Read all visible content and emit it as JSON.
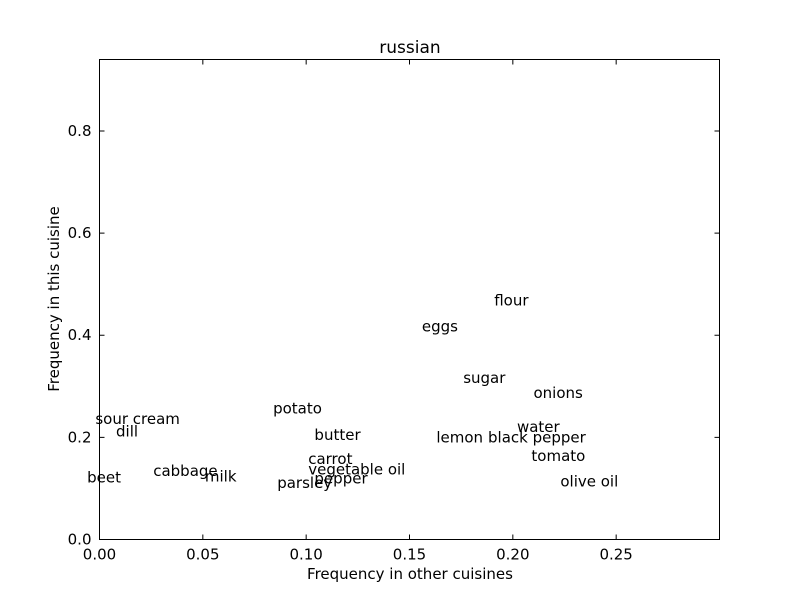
{
  "chart_data": {
    "type": "scatter",
    "title": "russian",
    "xlabel": "Frequency in other cuisines",
    "ylabel": "Frequency in this cuisine",
    "xlim": [
      0.0,
      0.3
    ],
    "ylim": [
      0.0,
      0.94
    ],
    "xticks": [
      0.0,
      0.05,
      0.1,
      0.15,
      0.2,
      0.25
    ],
    "xtick_labels": [
      "0.00",
      "0.05",
      "0.10",
      "0.15",
      "0.20",
      "0.25"
    ],
    "yticks": [
      0.0,
      0.2,
      0.4,
      0.6,
      0.8
    ],
    "ytick_labels": [
      "0.0",
      "0.2",
      "0.4",
      "0.6",
      "0.8"
    ],
    "grid": false,
    "points": [
      {
        "label": "flour",
        "x": 0.191,
        "y": 0.458
      },
      {
        "label": "eggs",
        "x": 0.156,
        "y": 0.407
      },
      {
        "label": "sugar",
        "x": 0.176,
        "y": 0.306
      },
      {
        "label": "onions",
        "x": 0.21,
        "y": 0.277
      },
      {
        "label": "potato",
        "x": 0.084,
        "y": 0.247
      },
      {
        "label": "sour cream",
        "x": -0.002,
        "y": 0.226
      },
      {
        "label": "dill",
        "x": 0.008,
        "y": 0.202
      },
      {
        "label": "water",
        "x": 0.202,
        "y": 0.211
      },
      {
        "label": "butter",
        "x": 0.104,
        "y": 0.195
      },
      {
        "label": "lemon",
        "x": 0.163,
        "y": 0.19
      },
      {
        "label": "black pepper",
        "x": 0.188,
        "y": 0.19
      },
      {
        "label": "tomato",
        "x": 0.209,
        "y": 0.154
      },
      {
        "label": "carrot",
        "x": 0.101,
        "y": 0.148
      },
      {
        "label": "vegetable oil",
        "x": 0.101,
        "y": 0.127
      },
      {
        "label": "cabbage",
        "x": 0.026,
        "y": 0.124
      },
      {
        "label": "milk",
        "x": 0.051,
        "y": 0.114
      },
      {
        "label": "beet",
        "x": -0.006,
        "y": 0.112
      },
      {
        "label": "pepper",
        "x": 0.104,
        "y": 0.11
      },
      {
        "label": "parsley",
        "x": 0.086,
        "y": 0.101
      },
      {
        "label": "olive oil",
        "x": 0.223,
        "y": 0.104
      }
    ]
  }
}
